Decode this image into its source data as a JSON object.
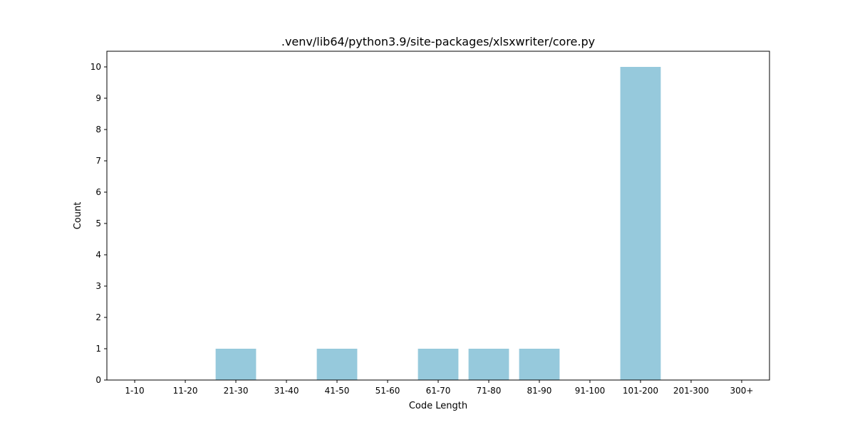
{
  "chart_data": {
    "type": "bar",
    "title": ".venv/lib64/python3.9/site-packages/xlsxwriter/core.py",
    "xlabel": "Code Length",
    "ylabel": "Count",
    "categories": [
      "1-10",
      "11-20",
      "21-30",
      "31-40",
      "41-50",
      "51-60",
      "61-70",
      "71-80",
      "81-90",
      "91-100",
      "101-200",
      "201-300",
      "300+"
    ],
    "values": [
      0,
      0,
      1,
      0,
      1,
      0,
      1,
      1,
      1,
      0,
      10,
      0,
      0
    ],
    "ylim": [
      0,
      10.5
    ],
    "yticks": [
      0,
      1,
      2,
      3,
      4,
      5,
      6,
      7,
      8,
      9,
      10
    ],
    "bar_color": "#96c9dc",
    "grid": false,
    "legend": "none"
  }
}
